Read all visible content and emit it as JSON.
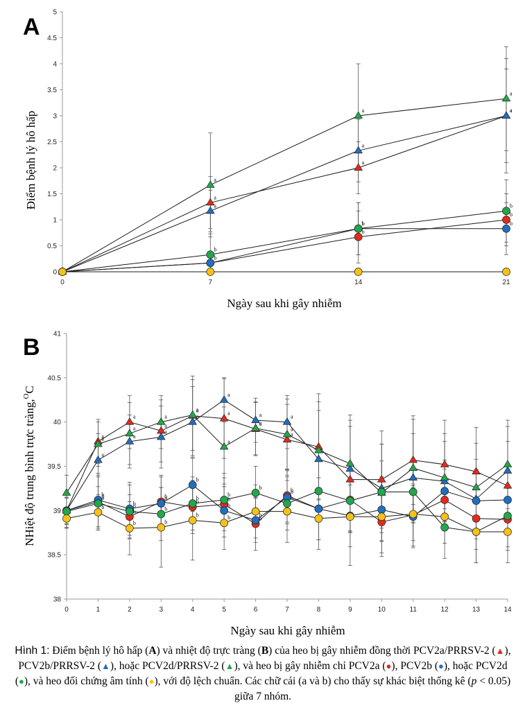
{
  "colors": {
    "red": "#E32A1C",
    "blue": "#1F6FC0",
    "green": "#22A84B",
    "yellow": "#F7C117",
    "axis": "#9a9a9a",
    "line": "#1a1a1a",
    "error": "#555555"
  },
  "chart_data": [
    {
      "panel": "A",
      "type": "line",
      "xlabel": "Ngày sau khi gây nhiễm",
      "ylabel": "Điểm bệnh lý hô hấp",
      "x": [
        0,
        7,
        14,
        21
      ],
      "xticks": [
        "0",
        "7",
        "14",
        "21"
      ],
      "ylim": [
        0,
        5
      ],
      "yticks": [
        "0",
        "0.5",
        "1",
        "1.5",
        "2",
        "2.5",
        "3",
        "3.5",
        "4",
        "4.5",
        "5"
      ],
      "series": [
        {
          "name": "PCV2a/PRRSV-2",
          "marker": "triangle",
          "color": "red",
          "values": [
            0,
            1.33,
            2.0,
            3.0
          ],
          "errors": [
            0,
            0.5,
            0.5,
            0.9
          ],
          "letters": [
            "",
            "a",
            "a",
            "a"
          ]
        },
        {
          "name": "PCV2b/PRRSV-2",
          "marker": "triangle",
          "color": "blue",
          "values": [
            0,
            1.17,
            2.33,
            3.0
          ],
          "errors": [
            0,
            0.4,
            0.6,
            1.1
          ],
          "letters": [
            "",
            "a",
            "a",
            "a"
          ]
        },
        {
          "name": "PCV2d/PRRSV-2",
          "marker": "triangle",
          "color": "green",
          "values": [
            0,
            1.67,
            3.0,
            3.33
          ],
          "errors": [
            0,
            1.0,
            1.0,
            1.0
          ],
          "letters": [
            "",
            "a",
            "a",
            "a"
          ]
        },
        {
          "name": "PCV2a",
          "marker": "circle",
          "color": "red",
          "values": [
            0,
            0.17,
            0.67,
            1.0
          ],
          "errors": [
            0,
            0.2,
            0.5,
            0.5
          ],
          "letters": [
            "",
            "",
            "b",
            "b"
          ]
        },
        {
          "name": "PCV2b",
          "marker": "circle",
          "color": "blue",
          "values": [
            0,
            0.17,
            0.83,
            0.83
          ],
          "errors": [
            0,
            0.2,
            0.5,
            0.5
          ],
          "letters": [
            "",
            "b",
            "b",
            "b"
          ]
        },
        {
          "name": "PCV2d",
          "marker": "circle",
          "color": "green",
          "values": [
            0,
            0.33,
            0.83,
            1.17
          ],
          "errors": [
            0,
            0.4,
            0.5,
            0.6
          ],
          "letters": [
            "",
            "b",
            "b",
            "b"
          ]
        },
        {
          "name": "Âm tính",
          "marker": "circle",
          "color": "yellow",
          "values": [
            0,
            0,
            0,
            0
          ],
          "errors": [
            0,
            0,
            0,
            0
          ],
          "letters": [
            "",
            "",
            "",
            ""
          ]
        }
      ]
    },
    {
      "panel": "B",
      "type": "line",
      "xlabel": "Ngày sau khi gây nhiễm",
      "ylabel": "NHiệt độ trung bình trực tràng,",
      "ylabel_unit": "C",
      "ylabel_degree": "O",
      "x": [
        0,
        1,
        2,
        3,
        4,
        5,
        6,
        7,
        8,
        9,
        10,
        11,
        12,
        13,
        14
      ],
      "xticks": [
        "0",
        "1",
        "2",
        "3",
        "4",
        "5",
        "6",
        "7",
        "8",
        "9",
        "10",
        "11",
        "12",
        "13",
        "14"
      ],
      "ylim": [
        38,
        41
      ],
      "yticks": [
        "38",
        "38.5",
        "39",
        "39.5",
        "40",
        "40.5",
        "41"
      ],
      "series": [
        {
          "name": "PCV2a/PRRSV-2",
          "marker": "triangle",
          "color": "red",
          "values": [
            39.0,
            39.78,
            40.0,
            39.9,
            40.07,
            40.04,
            39.92,
            39.8,
            39.72,
            39.35,
            39.35,
            39.57,
            39.52,
            39.44,
            39.28
          ],
          "errors": [
            0.2,
            0.25,
            0.3,
            0.35,
            0.45,
            0.45,
            0.3,
            0.4,
            0.6,
            0.6,
            0.55,
            0.5,
            0.5,
            0.5,
            0.5
          ],
          "letters": [
            "",
            "a",
            "a",
            "a",
            "a",
            "a",
            "a",
            "a",
            "",
            "",
            "",
            "",
            "",
            "",
            ""
          ]
        },
        {
          "name": "PCV2b/PRRSV-2",
          "marker": "triangle",
          "color": "blue",
          "values": [
            39.0,
            39.57,
            39.78,
            39.83,
            40.0,
            40.25,
            40.02,
            40.0,
            39.58,
            39.47,
            39.25,
            39.37,
            39.33,
            39.13,
            39.45
          ],
          "errors": [
            0.2,
            0.3,
            0.3,
            0.35,
            0.4,
            0.25,
            0.25,
            0.3,
            0.55,
            0.55,
            0.5,
            0.5,
            0.45,
            0.45,
            0.5
          ],
          "letters": [
            "",
            "a",
            "a",
            "a",
            "a",
            "a",
            "a",
            "a",
            "",
            "",
            "",
            "",
            "",
            "",
            ""
          ]
        },
        {
          "name": "PCV2d/PRRSV-2",
          "marker": "triangle",
          "color": "green",
          "values": [
            39.2,
            39.75,
            39.87,
            40.0,
            40.08,
            39.72,
            39.93,
            39.86,
            39.68,
            39.53,
            39.2,
            39.48,
            39.37,
            39.26,
            39.52
          ],
          "errors": [
            0.2,
            0.25,
            0.35,
            0.3,
            0.4,
            0.45,
            0.3,
            0.4,
            0.55,
            0.55,
            0.55,
            0.55,
            0.5,
            0.5,
            0.5
          ],
          "letters": [
            "",
            "a",
            "a",
            "a",
            "a",
            "a",
            "a",
            "a",
            "",
            "",
            "",
            "",
            "",
            "",
            ""
          ]
        },
        {
          "name": "PCV2a",
          "marker": "circle",
          "color": "red",
          "values": [
            39.0,
            39.1,
            38.93,
            39.1,
            39.04,
            39.07,
            38.85,
            39.17,
            39.02,
            39.12,
            38.87,
            38.95,
            39.12,
            38.91,
            38.9
          ],
          "errors": [
            0.15,
            0.3,
            0.25,
            0.3,
            0.3,
            0.3,
            0.3,
            0.3,
            0.35,
            0.35,
            0.35,
            0.35,
            0.35,
            0.35,
            0.35
          ],
          "letters": [
            "",
            "b",
            "b",
            "b",
            "b",
            "b",
            "b",
            "b",
            "",
            "",
            "",
            "",
            "",
            "",
            ""
          ]
        },
        {
          "name": "PCV2b",
          "marker": "circle",
          "color": "blue",
          "values": [
            39.0,
            39.12,
            39.02,
            39.08,
            39.29,
            39.0,
            38.89,
            39.15,
            39.02,
            38.94,
            39.01,
            38.93,
            39.22,
            39.11,
            39.12
          ],
          "errors": [
            0.15,
            0.3,
            0.3,
            0.3,
            0.3,
            0.3,
            0.25,
            0.3,
            0.35,
            0.35,
            0.35,
            0.35,
            0.35,
            0.35,
            0.35
          ],
          "letters": [
            "",
            "b",
            "b",
            "b",
            "b",
            "b",
            "b",
            "b",
            "",
            "",
            "",
            "",
            "",
            "",
            ""
          ]
        },
        {
          "name": "PCV2d",
          "marker": "circle",
          "color": "green",
          "values": [
            38.99,
            39.08,
            38.99,
            38.96,
            39.08,
            39.12,
            39.2,
            39.08,
            39.22,
            39.11,
            39.21,
            39.21,
            38.81,
            38.76,
            38.94
          ],
          "errors": [
            0.15,
            0.3,
            0.3,
            0.3,
            0.3,
            0.3,
            0.3,
            0.3,
            0.35,
            0.35,
            0.35,
            0.35,
            0.35,
            0.35,
            0.35
          ],
          "letters": [
            "",
            "b",
            "b",
            "b",
            "b",
            "b",
            "b",
            "b",
            "",
            "",
            "",
            "",
            "",
            "",
            ""
          ]
        },
        {
          "name": "Âm tính",
          "marker": "circle",
          "color": "yellow",
          "values": [
            38.91,
            38.98,
            38.8,
            38.81,
            38.89,
            38.86,
            38.99,
            38.99,
            38.91,
            38.93,
            38.93,
            38.96,
            38.93,
            38.76,
            38.76
          ],
          "errors": [
            0.1,
            0.2,
            0.3,
            0.45,
            0.45,
            0.3,
            0.3,
            0.35,
            0.35,
            0.55,
            0.45,
            0.3,
            0.3,
            0.35,
            0.35
          ],
          "letters": [
            "",
            "b",
            "b",
            "b",
            "b",
            "b",
            "",
            "",
            "",
            "",
            "",
            "",
            "",
            "",
            ""
          ]
        }
      ]
    }
  ],
  "caption": {
    "label": "Hình 1:",
    "seg1": " Điểm bệnh lý hô hấp (",
    "bA": "A",
    "seg2": ") và nhiệt độ trực tràng (",
    "bB": "B",
    "seg3": ") của heo bị gây nhiễm đồng thời PCV2a/PRRSV-2 (",
    "seg4": "), PCV2b/PRRSV-2 (",
    "seg5": "), hoặc PCV2d/PRRSV-2 (",
    "seg6": "), và heo bị gây nhiễm chỉ PCV2a (",
    "seg7": "), PCV2b (",
    "seg8": "), hoặc PCV2d (",
    "seg9": "), và heo đối chứng âm tính (",
    "seg10": "), với độ lệch chuẩn. Các chữ cái (a và b) cho thấy sự khác biệt thống kê (",
    "p": "p",
    "seg11": " < 0.05) giữa 7 nhóm.",
    "tri": "▲",
    "dot": "●"
  }
}
